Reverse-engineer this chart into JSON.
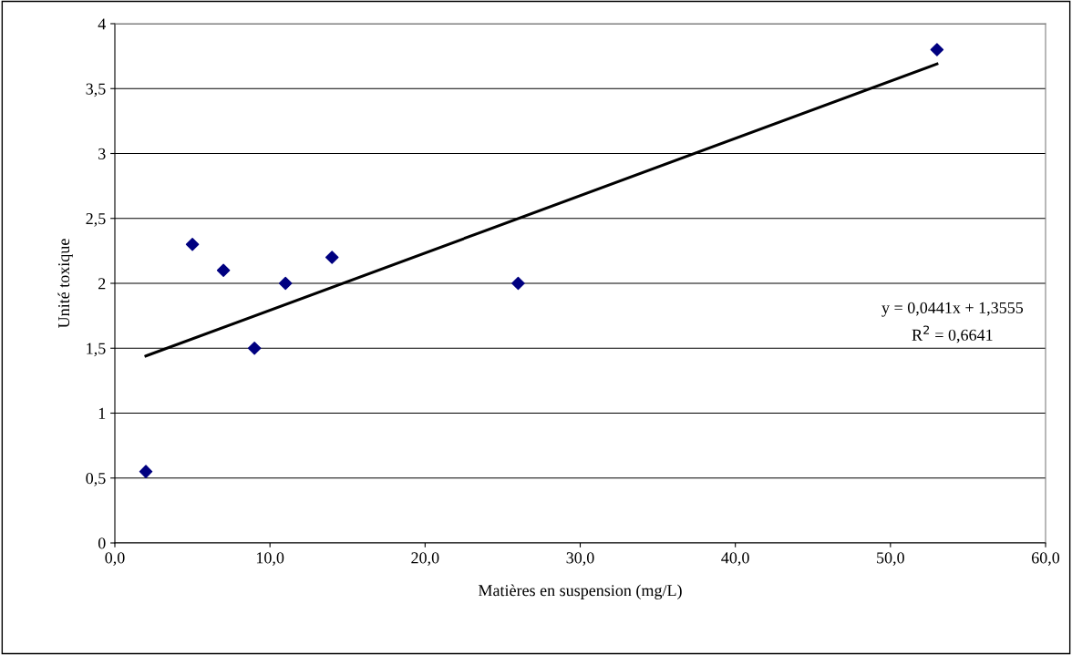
{
  "chart_data": {
    "type": "scatter",
    "xlabel": "Matières en suspension (mg/L)",
    "ylabel": "Unité toxique",
    "xlim": [
      0,
      60
    ],
    "xticks": [
      {
        "value": 0,
        "label": "0,0"
      },
      {
        "value": 10,
        "label": "10,0"
      },
      {
        "value": 20,
        "label": "20,0"
      },
      {
        "value": 30,
        "label": "30,0"
      },
      {
        "value": 40,
        "label": "40,0"
      },
      {
        "value": 50,
        "label": "50,0"
      },
      {
        "value": 60,
        "label": "60,0"
      }
    ],
    "ylim": [
      0,
      4
    ],
    "yticks": [
      0,
      {
        "value": 0.5,
        "label": "0,5"
      },
      1,
      {
        "value": 1.5,
        "label": "1,5"
      },
      2,
      {
        "value": 2.5,
        "label": "2,5"
      },
      3,
      {
        "value": 3.5,
        "label": "3,5"
      },
      4
    ],
    "grid": "y",
    "series": [
      {
        "marker": "diamond",
        "color": "#000080",
        "x": [
          2,
          5,
          7,
          9,
          11,
          14,
          26,
          53
        ],
        "values": [
          0.55,
          2.3,
          2.1,
          1.5,
          2.0,
          2.2,
          2.0,
          3.8
        ]
      },
      {
        "type": "line",
        "marker": "none",
        "color": "#000000",
        "x": [
          2,
          53
        ],
        "values": [
          1.44,
          3.69
        ]
      }
    ],
    "annotations": [
      "y = 0,0441x + 1,3555",
      "R$^{2}$ = 0,6641"
    ]
  }
}
